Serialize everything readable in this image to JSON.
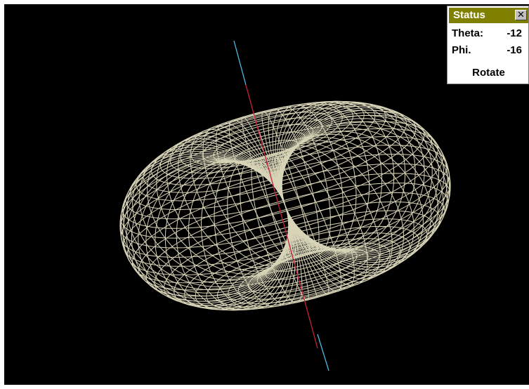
{
  "viewer": {
    "background": "#000000",
    "mesh_color": "#d8d4b8",
    "axis_colors": [
      "#4fb8e8",
      "#c8203c"
    ]
  },
  "status": {
    "title": "Status",
    "close_glyph": "✕",
    "rows": [
      {
        "label": "Theta:",
        "value": "-12"
      },
      {
        "label": "Phi.",
        "value": "-16"
      }
    ],
    "rotate_label": "Rotate",
    "accent": "#808000"
  }
}
